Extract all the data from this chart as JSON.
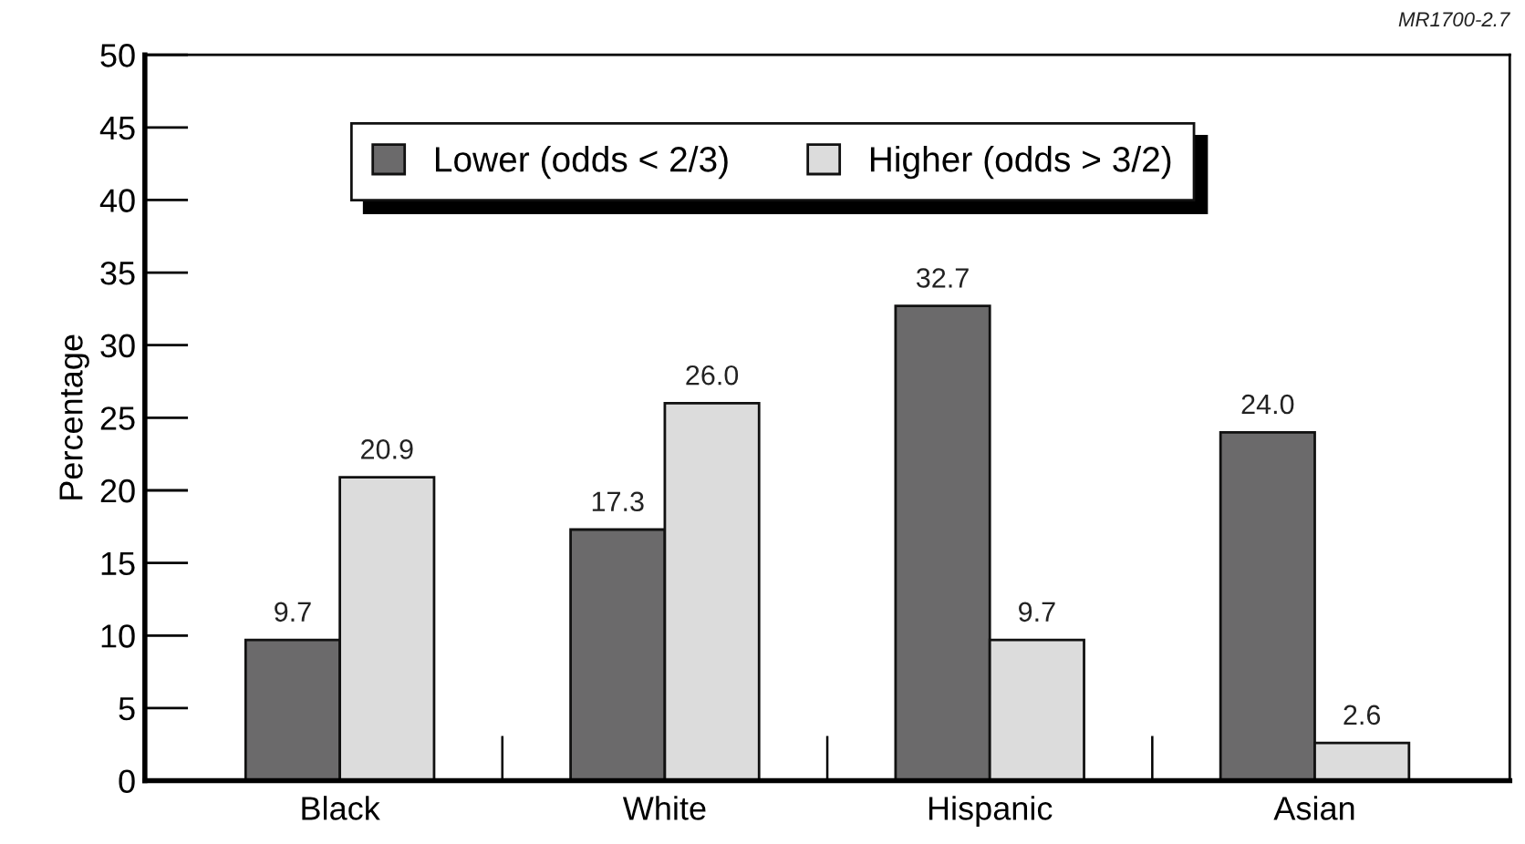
{
  "chart_data": {
    "type": "bar",
    "ylabel": "Percentage",
    "categories": [
      "Black",
      "White",
      "Hispanic",
      "Asian"
    ],
    "series": [
      {
        "name": "Lower (odds < 2/3)",
        "color": "#6b6a6b",
        "values": [
          9.7,
          17.3,
          32.7,
          24.0
        ],
        "value_labels": [
          "9.7",
          "17.3",
          "32.7",
          "24.0"
        ]
      },
      {
        "name": "Higher (odds > 3/2)",
        "color": "#dcdcdc",
        "values": [
          20.9,
          26.0,
          9.7,
          2.6
        ],
        "value_labels": [
          "20.9",
          "26.0",
          "9.7",
          "2.6"
        ]
      }
    ],
    "ylim": [
      0,
      50
    ],
    "yticks": [
      0,
      5,
      10,
      15,
      20,
      25,
      30,
      35,
      40,
      45,
      50
    ],
    "legend": "top",
    "grid": false,
    "annotations": [
      "MR1700-2.7"
    ]
  }
}
